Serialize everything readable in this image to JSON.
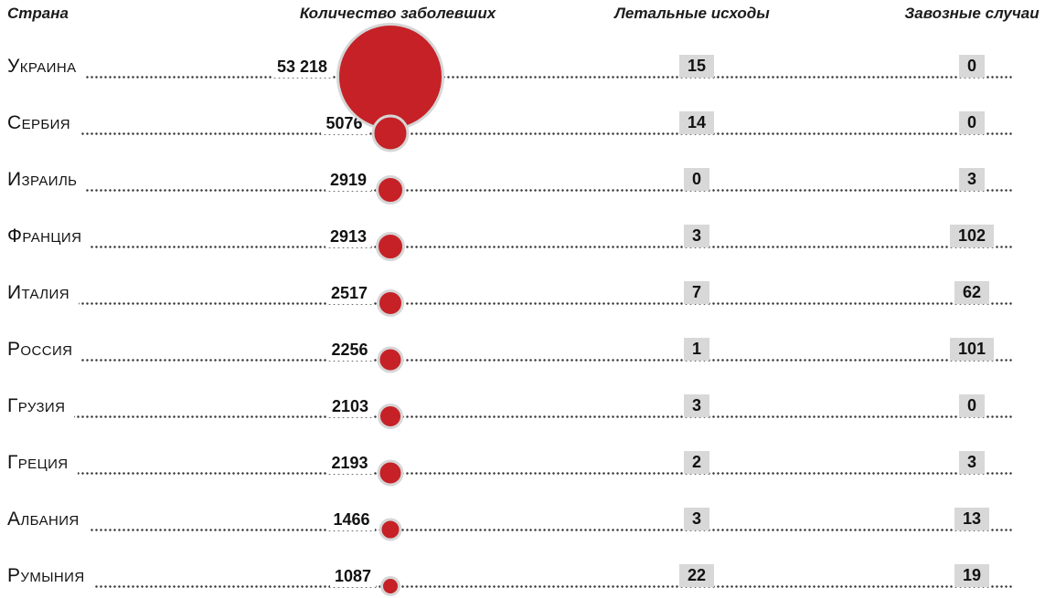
{
  "chart_data": {
    "type": "table",
    "title": "",
    "columns": [
      "Страна",
      "Количество заболевших",
      "Летальные исходы",
      "Завозные случаи"
    ],
    "legend": "bubble size encodes number of cases (Количество заболевших)",
    "accent_color": "#c52127",
    "highlight_box_color": "#d8d8d8",
    "max_cases": 53218,
    "rows": [
      {
        "country": "Украина",
        "cases": 53218,
        "cases_label": "53 218",
        "deaths": "15",
        "imported": "0"
      },
      {
        "country": "Сербия",
        "cases": 5076,
        "cases_label": "5076",
        "deaths": "14",
        "imported": "0"
      },
      {
        "country": "Израиль",
        "cases": 2919,
        "cases_label": "2919",
        "deaths": "0",
        "imported": "3"
      },
      {
        "country": "Франция",
        "cases": 2913,
        "cases_label": "2913",
        "deaths": "3",
        "imported": "102"
      },
      {
        "country": "Италия",
        "cases": 2517,
        "cases_label": "2517",
        "deaths": "7",
        "imported": "62"
      },
      {
        "country": "Россия",
        "cases": 2256,
        "cases_label": "2256",
        "deaths": "1",
        "imported": "101"
      },
      {
        "country": "Грузия",
        "cases": 2103,
        "cases_label": "2103",
        "deaths": "3",
        "imported": "0"
      },
      {
        "country": "Греция",
        "cases": 2193,
        "cases_label": "2193",
        "deaths": "2",
        "imported": "3"
      },
      {
        "country": "Албания",
        "cases": 1466,
        "cases_label": "1466",
        "deaths": "3",
        "imported": "13"
      },
      {
        "country": "Румыния",
        "cases": 1087,
        "cases_label": "1087",
        "deaths": "22",
        "imported": "19"
      }
    ]
  }
}
